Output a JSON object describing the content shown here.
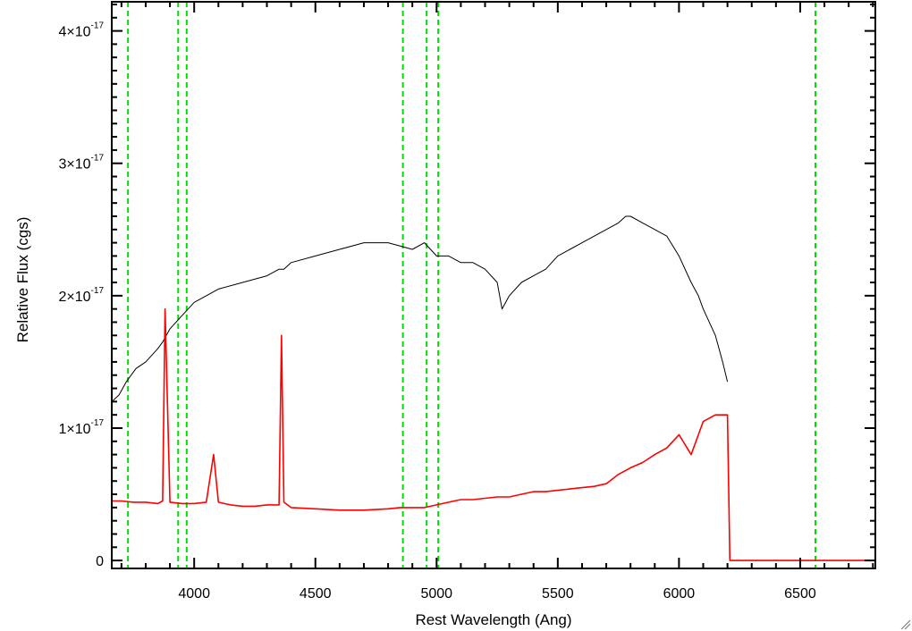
{
  "chart_data": {
    "type": "line",
    "xlabel": "Rest Wavelength (Ang)",
    "ylabel": "Relative Flux (cgs)",
    "xlim": [
      3660,
      6810
    ],
    "ylim": [
      -6e-19,
      4.22e-17
    ],
    "x_ticks": [
      {
        "value": 4000,
        "label": "4000"
      },
      {
        "value": 4500,
        "label": "4500"
      },
      {
        "value": 5000,
        "label": "5000"
      },
      {
        "value": 5500,
        "label": "5500"
      },
      {
        "value": 6000,
        "label": "6000"
      },
      {
        "value": 6500,
        "label": "6500"
      }
    ],
    "y_ticks": [
      {
        "value": 0,
        "mantissa": "0",
        "exponent": ""
      },
      {
        "value": 1e-17,
        "mantissa": "1×10",
        "exponent": "-17"
      },
      {
        "value": 2e-17,
        "mantissa": "2×10",
        "exponent": "-17"
      },
      {
        "value": 3e-17,
        "mantissa": "3×10",
        "exponent": "-17"
      },
      {
        "value": 4e-17,
        "mantissa": "4×10",
        "exponent": "-17"
      }
    ],
    "grid": false,
    "colors": {
      "observed": "#000000",
      "model": "#ff0000",
      "lines": "#00dd00"
    },
    "reference_lines": [
      3727,
      3934,
      3969,
      4861,
      4959,
      5007,
      6563
    ],
    "series": [
      {
        "color": "#000000",
        "x": [
          3660,
          3690,
          3720,
          3760,
          3800,
          3850,
          3870,
          3900,
          3950,
          4000,
          4050,
          4100,
          4200,
          4300,
          4350,
          4370,
          4400,
          4500,
          4600,
          4700,
          4800,
          4900,
          4950,
          5000,
          5050,
          5100,
          5150,
          5200,
          5250,
          5270,
          5300,
          5350,
          5400,
          5450,
          5500,
          5550,
          5600,
          5650,
          5700,
          5750,
          5780,
          5800,
          5850,
          5900,
          5950,
          6000,
          6050,
          6080,
          6100,
          6150,
          6180,
          6200
        ],
        "y": [
          1.2e-17,
          1.25e-17,
          1.35e-17,
          1.45e-17,
          1.5e-17,
          1.6e-17,
          1.65e-17,
          1.75e-17,
          1.85e-17,
          1.95e-17,
          2e-17,
          2.05e-17,
          2.1e-17,
          2.15e-17,
          2.2e-17,
          2.2e-17,
          2.25e-17,
          2.3e-17,
          2.35e-17,
          2.4e-17,
          2.4e-17,
          2.35e-17,
          2.4e-17,
          2.3e-17,
          2.3e-17,
          2.25e-17,
          2.25e-17,
          2.2e-17,
          2.1e-17,
          1.9e-17,
          2e-17,
          2.1e-17,
          2.15e-17,
          2.2e-17,
          2.3e-17,
          2.35e-17,
          2.4e-17,
          2.45e-17,
          2.5e-17,
          2.55e-17,
          2.6e-17,
          2.6e-17,
          2.55e-17,
          2.5e-17,
          2.45e-17,
          2.3e-17,
          2.1e-17,
          2e-17,
          1.9e-17,
          1.7e-17,
          1.5e-17,
          1.35e-17
        ]
      },
      {
        "color": "#ff0000",
        "x": [
          3660,
          3700,
          3750,
          3800,
          3850,
          3870,
          3880,
          3900,
          3950,
          4000,
          4050,
          4080,
          4100,
          4150,
          4200,
          4250,
          4300,
          4350,
          4360,
          4370,
          4400,
          4500,
          4600,
          4700,
          4800,
          4850,
          4900,
          4950,
          5000,
          5050,
          5100,
          5150,
          5200,
          5250,
          5300,
          5350,
          5400,
          5450,
          5500,
          5550,
          5600,
          5650,
          5700,
          5750,
          5800,
          5850,
          5900,
          5950,
          6000,
          6050,
          6100,
          6150,
          6200,
          6210,
          6215,
          6300,
          6500,
          6700,
          6810
        ],
        "y": [
          4.5e-18,
          4.5e-18,
          4.4e-18,
          4.4e-18,
          4.3e-18,
          4.5e-18,
          1.9e-17,
          4.4e-18,
          4.3e-18,
          4.3e-18,
          4.4e-18,
          8e-18,
          4.4e-18,
          4.2e-18,
          4.1e-18,
          4.1e-18,
          4.2e-18,
          4.2e-18,
          1.7e-17,
          4.4e-18,
          4e-18,
          3.9e-18,
          3.8e-18,
          3.8e-18,
          3.9e-18,
          4e-18,
          4e-18,
          4e-18,
          4.2e-18,
          4.4e-18,
          4.6e-18,
          4.6e-18,
          4.7e-18,
          4.8e-18,
          4.8e-18,
          5e-18,
          5.2e-18,
          5.2e-18,
          5.3e-18,
          5.4e-18,
          5.5e-18,
          5.6e-18,
          5.8e-18,
          6.5e-18,
          7e-18,
          7.4e-18,
          8e-18,
          8.5e-18,
          9.5e-18,
          8e-18,
          1.05e-17,
          1.1e-17,
          1.1e-17,
          0.0,
          0.0,
          0.0,
          0.0,
          0.0,
          0.0
        ]
      }
    ]
  }
}
